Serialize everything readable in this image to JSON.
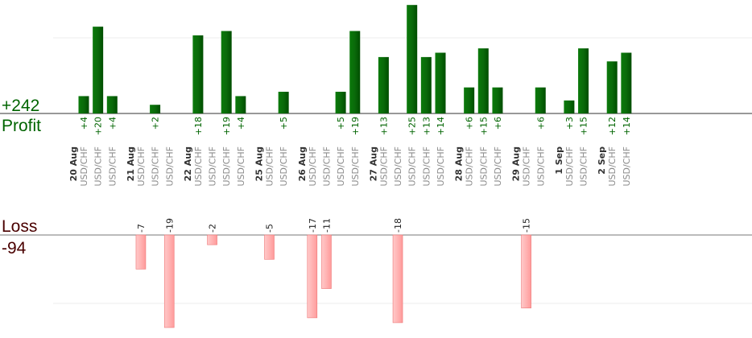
{
  "summary": {
    "profit_value": "+242",
    "profit_label": "Profit",
    "loss_label": "Loss",
    "loss_value": "-94"
  },
  "colors": {
    "profit_bar": "#0a6a0a",
    "profit_text": "#006400",
    "loss_bar": "#ffb3b3",
    "loss_text": "#4a0000"
  },
  "chart_data": {
    "type": "bar",
    "title": "",
    "xlabel": "",
    "ylabel": "",
    "grid": true,
    "profit_ylim": [
      0,
      28
    ],
    "loss_ylim": [
      0,
      19
    ],
    "groups": [
      {
        "date": "20 Aug",
        "trades": [
          {
            "pair": "USD/CHF",
            "value": 4
          },
          {
            "pair": "USD/CHF",
            "value": 20
          },
          {
            "pair": "USD/CHF",
            "value": 4
          }
        ]
      },
      {
        "date": "21 Aug",
        "trades": [
          {
            "pair": "USD/CHF",
            "value": -7
          },
          {
            "pair": "USD/CHF",
            "value": 2
          },
          {
            "pair": "USD/CHF",
            "value": -19
          }
        ]
      },
      {
        "date": "22 Aug",
        "trades": [
          {
            "pair": "USD/CHF",
            "value": 18
          },
          {
            "pair": "USD/CHF",
            "value": -2
          },
          {
            "pair": "USD/CHF",
            "value": 19
          },
          {
            "pair": "USD/CHF",
            "value": 4
          }
        ]
      },
      {
        "date": "25 Aug",
        "trades": [
          {
            "pair": "USD/CHF",
            "value": -5
          },
          {
            "pair": "USD/CHF",
            "value": 5
          }
        ]
      },
      {
        "date": "26 Aug",
        "trades": [
          {
            "pair": "USD/CHF",
            "value": -17
          },
          {
            "pair": "USD/CHF",
            "value": -11
          },
          {
            "pair": "USD/CHF",
            "value": 5
          },
          {
            "pair": "USD/CHF",
            "value": 19
          }
        ]
      },
      {
        "date": "27 Aug",
        "trades": [
          {
            "pair": "USD/CHF",
            "value": 13
          },
          {
            "pair": "USD/CHF",
            "value": -18
          },
          {
            "pair": "USD/CHF",
            "value": 25
          },
          {
            "pair": "USD/CHF",
            "value": 13
          },
          {
            "pair": "USD/CHF",
            "value": 14
          }
        ]
      },
      {
        "date": "28 Aug",
        "trades": [
          {
            "pair": "USD/CHF",
            "value": 6
          },
          {
            "pair": "USD/CHF",
            "value": 15
          },
          {
            "pair": "USD/CHF",
            "value": 6
          }
        ]
      },
      {
        "date": "29 Aug",
        "trades": [
          {
            "pair": "USD/CHF",
            "value": -15
          },
          {
            "pair": "USD/CHF",
            "value": 6
          }
        ]
      },
      {
        "date": "1 Sep",
        "trades": [
          {
            "pair": "USD/CHF",
            "value": 3
          },
          {
            "pair": "USD/CHF",
            "value": 15
          }
        ]
      },
      {
        "date": "2 Sep",
        "trades": [
          {
            "pair": "USD/CHF",
            "value": 12
          },
          {
            "pair": "USD/CHF",
            "value": 14
          }
        ]
      }
    ]
  }
}
